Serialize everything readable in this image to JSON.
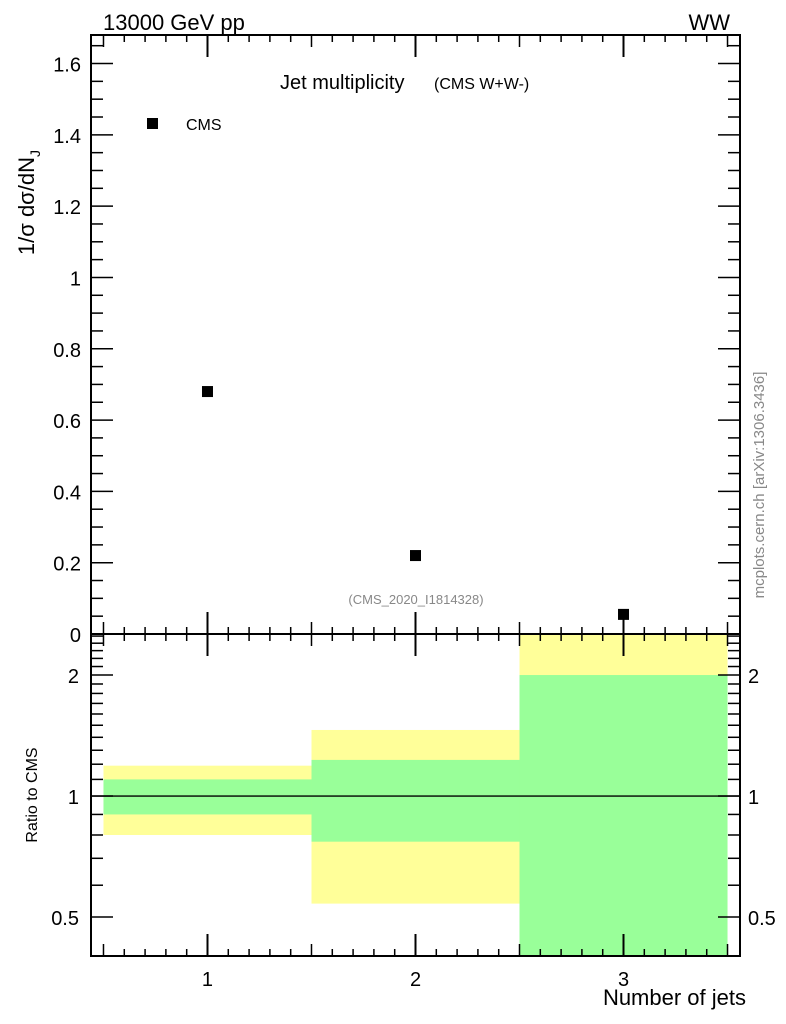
{
  "header": {
    "left": "13000 GeV pp",
    "right": "WW"
  },
  "side_label": "mcplots.cern.ch [arXiv:1306.3436]",
  "chart_data": [
    {
      "type": "scatter",
      "title": "Jet multiplicity",
      "subtitle": "(CMS W+W-)",
      "analysis_label": "(CMS_2020_I1814328)",
      "ylabel": "1/σ dσ/dN",
      "ylabel_sub": "J",
      "xlim": [
        0.44,
        3.56
      ],
      "ylim": [
        0,
        1.68
      ],
      "yticks": [
        0,
        0.2,
        0.4,
        0.6,
        0.8,
        1,
        1.2,
        1.4,
        1.6
      ],
      "ytick_labels": [
        "0",
        "0.2",
        "0.4",
        "0.6",
        "0.8",
        "1",
        "1.2",
        "1.4",
        "1.6"
      ],
      "legend": {
        "entries": [
          "CMS"
        ],
        "placement": "top-left"
      },
      "series": [
        {
          "name": "CMS",
          "x": [
            1,
            2,
            3
          ],
          "y": [
            0.68,
            0.22,
            0.055
          ],
          "yerr_low": [
            0,
            0,
            0.055
          ],
          "color": "#000000"
        }
      ]
    },
    {
      "type": "area",
      "ylabel": "Ratio to CMS",
      "xlabel": "Number of jets",
      "yscale": "log",
      "ylim": [
        0.4,
        2.53
      ],
      "xlim": [
        0.44,
        3.56
      ],
      "xticks": [
        1,
        2,
        3
      ],
      "xtick_labels": [
        "1",
        "2",
        "3"
      ],
      "yticks": [
        0.5,
        1,
        2
      ],
      "ytick_labels": [
        "0.5",
        "1",
        "2"
      ],
      "reference_line": 1,
      "bins": [
        {
          "lo": 0.5,
          "hi": 1.5,
          "outer": [
            0.8,
            1.19
          ],
          "inner": [
            0.9,
            1.1
          ]
        },
        {
          "lo": 1.5,
          "hi": 2.5,
          "outer": [
            0.54,
            1.46
          ],
          "inner": [
            0.77,
            1.23
          ]
        },
        {
          "lo": 2.5,
          "hi": 3.5,
          "outer": [
            0.3,
            3.0
          ],
          "inner": [
            0.3,
            2.0
          ]
        }
      ],
      "colors": {
        "outer": "#ffff99",
        "inner": "#99ff99"
      }
    }
  ]
}
